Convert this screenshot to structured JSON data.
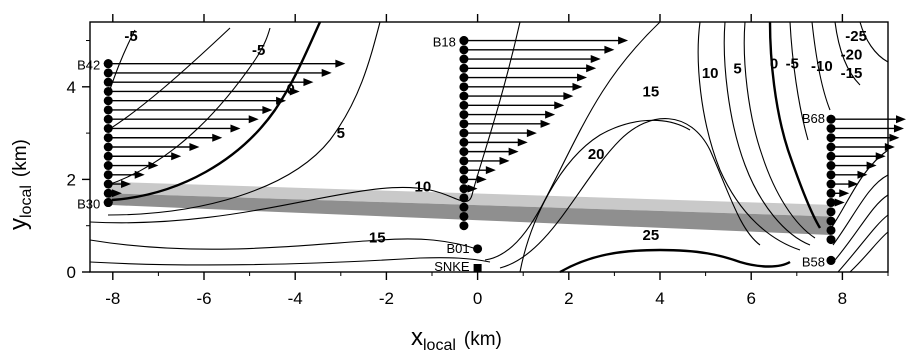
{
  "chart_data": {
    "type": "contour_with_vector_profiles",
    "x_axis": {
      "label_main": "x",
      "label_sub": "local",
      "unit": "(km)",
      "range": [
        -8.5,
        9
      ],
      "ticks": [
        -8,
        -6,
        -4,
        -2,
        0,
        2,
        4,
        6,
        8
      ],
      "tick_labels": [
        "-8",
        "-6",
        "-4",
        "-2",
        "0",
        "2",
        "4",
        "6",
        "8"
      ]
    },
    "y_axis": {
      "label_main": "y",
      "label_sub": "local",
      "unit": "(km)",
      "range": [
        0,
        5.4
      ],
      "ticks": [
        0,
        2,
        4
      ],
      "tick_labels": [
        "0",
        "2",
        "4"
      ]
    },
    "contour_labels": [
      {
        "text": "-5",
        "x": -7.6,
        "y": 5.1
      },
      {
        "text": "-5",
        "x": -4.8,
        "y": 4.8
      },
      {
        "text": "0",
        "x": -4.1,
        "y": 3.95
      },
      {
        "text": "5",
        "x": -3.0,
        "y": 3.0
      },
      {
        "text": "10",
        "x": -1.2,
        "y": 1.85
      },
      {
        "text": "15",
        "x": -2.2,
        "y": 0.75
      },
      {
        "text": "15",
        "x": 3.8,
        "y": 3.9
      },
      {
        "text": "20",
        "x": 2.6,
        "y": 2.55
      },
      {
        "text": "25",
        "x": 3.8,
        "y": 0.8
      },
      {
        "text": "10",
        "x": 5.1,
        "y": 4.3
      },
      {
        "text": "5",
        "x": 5.7,
        "y": 4.4
      },
      {
        "text": "0",
        "x": 6.5,
        "y": 4.5
      },
      {
        "text": "-5",
        "x": 6.9,
        "y": 4.5
      },
      {
        "text": "-10",
        "x": 7.55,
        "y": 4.45
      },
      {
        "text": "-15",
        "x": 8.2,
        "y": 4.3
      },
      {
        "text": "-20",
        "x": 8.2,
        "y": 4.7
      },
      {
        "text": "-25",
        "x": 8.3,
        "y": 5.1
      }
    ],
    "stations": [
      {
        "name": "B42",
        "x": -8.1,
        "y": 4.5
      },
      {
        "name": "B30",
        "x": -8.1,
        "y": 1.5
      },
      {
        "name": "B18",
        "x": -0.3,
        "y": 5.0
      },
      {
        "name": "B01",
        "x": 0.0,
        "y": 0.5
      },
      {
        "name": "SNKE",
        "x": 0.0,
        "y": 0.0
      },
      {
        "name": "B68",
        "x": 7.75,
        "y": 3.3
      },
      {
        "name": "B58",
        "x": 7.75,
        "y": 0.25
      }
    ],
    "wind_profiles": [
      {
        "x": -8.1,
        "points": [
          {
            "y": 4.5,
            "u": 5.2
          },
          {
            "y": 4.3,
            "u": 4.9
          },
          {
            "y": 4.1,
            "u": 4.5
          },
          {
            "y": 3.9,
            "u": 4.2
          },
          {
            "y": 3.7,
            "u": 3.9
          },
          {
            "y": 3.5,
            "u": 3.6
          },
          {
            "y": 3.3,
            "u": 3.3
          },
          {
            "y": 3.1,
            "u": 2.9
          },
          {
            "y": 2.9,
            "u": 2.5
          },
          {
            "y": 2.7,
            "u": 2.0
          },
          {
            "y": 2.5,
            "u": 1.6
          },
          {
            "y": 2.3,
            "u": 1.1
          },
          {
            "y": 2.1,
            "u": 0.8
          },
          {
            "y": 1.9,
            "u": 0.5
          },
          {
            "y": 1.7,
            "u": 0.3
          },
          {
            "y": 1.5,
            "u": 0.0
          }
        ]
      },
      {
        "x": -0.3,
        "points": [
          {
            "y": 5.0,
            "u": 3.6
          },
          {
            "y": 4.8,
            "u": 3.3
          },
          {
            "y": 4.6,
            "u": 3.0
          },
          {
            "y": 4.4,
            "u": 2.9
          },
          {
            "y": 4.2,
            "u": 2.7
          },
          {
            "y": 4.0,
            "u": 2.6
          },
          {
            "y": 3.8,
            "u": 2.4
          },
          {
            "y": 3.6,
            "u": 2.2
          },
          {
            "y": 3.4,
            "u": 2.0
          },
          {
            "y": 3.2,
            "u": 1.9
          },
          {
            "y": 3.0,
            "u": 1.6
          },
          {
            "y": 2.8,
            "u": 1.4
          },
          {
            "y": 2.6,
            "u": 1.2
          },
          {
            "y": 2.4,
            "u": 1.0
          },
          {
            "y": 2.2,
            "u": 0.7
          },
          {
            "y": 2.0,
            "u": 0.5
          },
          {
            "y": 1.8,
            "u": 0.3
          },
          {
            "y": 1.6,
            "u": 0.0
          },
          {
            "y": 1.4,
            "u": 0.0
          },
          {
            "y": 1.2,
            "u": 0.0
          },
          {
            "y": 1.0,
            "u": 0.0
          }
        ]
      },
      {
        "x": 7.75,
        "points": [
          {
            "y": 3.3,
            "u": 1.7
          },
          {
            "y": 3.1,
            "u": 1.6
          },
          {
            "y": 2.9,
            "u": 1.5
          },
          {
            "y": 2.7,
            "u": 1.4
          },
          {
            "y": 2.5,
            "u": 1.2
          },
          {
            "y": 2.3,
            "u": 1.0
          },
          {
            "y": 2.1,
            "u": 0.8
          },
          {
            "y": 1.9,
            "u": 0.6
          },
          {
            "y": 1.7,
            "u": 0.4
          },
          {
            "y": 1.5,
            "u": 0.3
          },
          {
            "y": 1.3,
            "u": 0.0
          },
          {
            "y": 1.1,
            "u": 0.0
          },
          {
            "y": 0.9,
            "u": 0.0
          },
          {
            "y": 0.7,
            "u": 0.0
          },
          {
            "y": 0.25,
            "u": 0.0
          }
        ]
      }
    ],
    "shaded_band": {
      "description_from": "gray band",
      "upper_light": [
        [
          -8.1,
          1.95
        ],
        [
          7.75,
          1.45
        ]
      ],
      "mid": [
        [
          -8.1,
          1.7
        ],
        [
          7.75,
          1.2
        ]
      ],
      "lower_dark": [
        [
          -8.1,
          1.45
        ],
        [
          7.75,
          0.8
        ]
      ]
    }
  }
}
